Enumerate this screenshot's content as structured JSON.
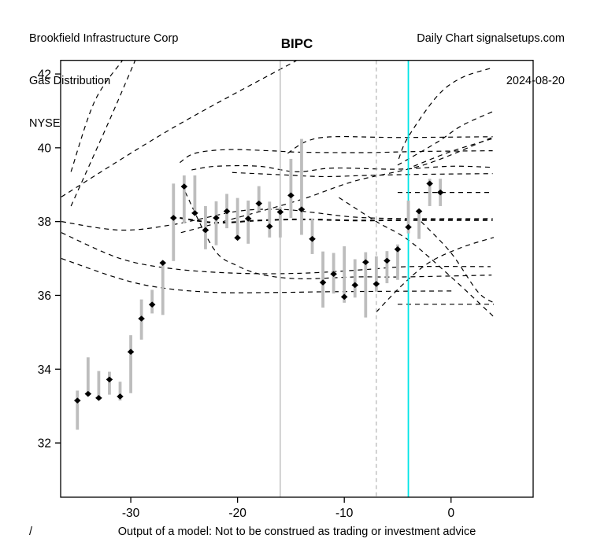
{
  "header": {
    "left_lines": [
      "Brookfield Infrastructure Corp",
      "Gas Distribution",
      "NYSE"
    ],
    "right_lines": [
      "Daily Chart signalsetups.com",
      "2024-08-20"
    ]
  },
  "title": "BIPC",
  "footer": {
    "left_symbol": "/",
    "caption": "Output of a model: Not to be construed as trading or investment advice"
  },
  "colors": {
    "bar": "#bdbdbd",
    "marker": "#000000",
    "model_line": "#000000",
    "vline_gray": "#b3b3b3",
    "vline_cyan": "#00e5e6",
    "axis": "#000000",
    "background": "#ffffff"
  },
  "chart_data": {
    "type": "bar",
    "subtype": "high-low-close price bars with dashed model projection lines",
    "title": "BIPC",
    "xlabel": "",
    "ylabel": "",
    "x_axis": {
      "ticks": [
        -30,
        -20,
        -10,
        0
      ],
      "range": [
        -36.57,
        7.69
      ]
    },
    "y_axis": {
      "ticks": [
        32,
        34,
        36,
        38,
        40,
        42
      ],
      "range": [
        30.53,
        42.37
      ]
    },
    "grid": "off",
    "legend": "none",
    "bars": [
      {
        "x": -35,
        "high": 33.42,
        "low": 32.36,
        "close": 33.15
      },
      {
        "x": -34,
        "high": 34.32,
        "low": 33.27,
        "close": 33.33
      },
      {
        "x": -33,
        "high": 33.95,
        "low": 33.17,
        "close": 33.22
      },
      {
        "x": -32,
        "high": 33.93,
        "low": 33.31,
        "close": 33.72
      },
      {
        "x": -31,
        "high": 33.66,
        "low": 33.15,
        "close": 33.26
      },
      {
        "x": -30,
        "high": 34.92,
        "low": 33.35,
        "close": 34.47
      },
      {
        "x": -29,
        "high": 35.89,
        "low": 34.8,
        "close": 35.37
      },
      {
        "x": -28,
        "high": 36.15,
        "low": 35.51,
        "close": 35.75
      },
      {
        "x": -27,
        "high": 36.93,
        "low": 35.47,
        "close": 36.88
      },
      {
        "x": -26,
        "high": 39.03,
        "low": 36.93,
        "close": 38.1
      },
      {
        "x": -25,
        "high": 39.25,
        "low": 37.95,
        "close": 38.95
      },
      {
        "x": -24,
        "high": 39.25,
        "low": 38.18,
        "close": 38.23
      },
      {
        "x": -23,
        "high": 38.42,
        "low": 37.25,
        "close": 37.77
      },
      {
        "x": -22,
        "high": 38.55,
        "low": 37.36,
        "close": 38.1
      },
      {
        "x": -21,
        "high": 38.75,
        "low": 37.82,
        "close": 38.28
      },
      {
        "x": -20,
        "high": 38.64,
        "low": 37.54,
        "close": 37.56
      },
      {
        "x": -19,
        "high": 38.57,
        "low": 37.4,
        "close": 38.08
      },
      {
        "x": -18,
        "high": 38.96,
        "low": 38.28,
        "close": 38.49
      },
      {
        "x": -17,
        "high": 38.54,
        "low": 37.57,
        "close": 37.87
      },
      {
        "x": -16,
        "high": 38.39,
        "low": 37.57,
        "close": 38.26
      },
      {
        "x": -15,
        "high": 39.7,
        "low": 38.1,
        "close": 38.71
      },
      {
        "x": -14,
        "high": 40.24,
        "low": 37.64,
        "close": 38.33
      },
      {
        "x": -13,
        "high": 38.08,
        "low": 37.12,
        "close": 37.53
      },
      {
        "x": -12,
        "high": 37.19,
        "low": 35.67,
        "close": 36.35
      },
      {
        "x": -11,
        "high": 37.15,
        "low": 36.05,
        "close": 36.58
      },
      {
        "x": -10,
        "high": 37.33,
        "low": 35.8,
        "close": 35.96
      },
      {
        "x": -9,
        "high": 36.98,
        "low": 35.94,
        "close": 36.28
      },
      {
        "x": -8,
        "high": 37.17,
        "low": 35.4,
        "close": 36.9
      },
      {
        "x": -7,
        "high": 37.06,
        "low": 36.1,
        "close": 36.31
      },
      {
        "x": -6,
        "high": 37.2,
        "low": 36.33,
        "close": 36.94
      },
      {
        "x": -5,
        "high": 37.38,
        "low": 36.42,
        "close": 37.25
      },
      {
        "x": -4,
        "high": 38.57,
        "low": 37.68,
        "close": 37.85
      },
      {
        "x": -3,
        "high": 38.32,
        "low": 37.53,
        "close": 38.28
      },
      {
        "x": -2,
        "high": 39.16,
        "low": 38.42,
        "close": 39.03
      },
      {
        "x": -1,
        "high": 39.16,
        "low": 38.42,
        "close": 38.79
      }
    ],
    "vlines": [
      {
        "x": -16,
        "style": "solid",
        "color_key": "vline_gray",
        "width": 1.2
      },
      {
        "x": -7,
        "style": "dashed",
        "color_key": "vline_gray",
        "width": 1.2
      },
      {
        "x": -4,
        "style": "solid",
        "color_key": "vline_cyan",
        "width": 1.8
      }
    ],
    "model_lines": [
      {
        "name": "steep-upper-left-1",
        "width": 1.2,
        "points": [
          [
            -35.6,
            39.35
          ],
          [
            -33.4,
            41.25
          ],
          [
            -30.8,
            42.36
          ]
        ]
      },
      {
        "name": "steep-upper-left-2",
        "width": 1.2,
        "points": [
          [
            -35.6,
            38.42
          ],
          [
            -31.9,
            40.81
          ],
          [
            -29.6,
            42.36
          ]
        ]
      },
      {
        "name": "long-rising-diagonal",
        "width": 1.2,
        "points": [
          [
            -36.5,
            38.67
          ],
          [
            -26,
            40.55
          ],
          [
            -14.5,
            42.36
          ]
        ]
      },
      {
        "name": "band-38-upper",
        "width": 1.2,
        "points": [
          [
            -36.5,
            38.0
          ],
          [
            -31,
            37.77
          ],
          [
            -26,
            37.92
          ],
          [
            -20,
            38.28
          ],
          [
            -16,
            38.33
          ],
          [
            -13,
            38.25
          ],
          [
            -9,
            38.12
          ],
          [
            -4,
            38.08
          ],
          [
            3.9,
            38.08
          ]
        ]
      },
      {
        "name": "band-38-lower-bold",
        "width": 2.0,
        "points": [
          [
            -25.4,
            38.1
          ],
          [
            -22,
            37.97
          ],
          [
            -18,
            38.03
          ],
          [
            -14,
            38.06
          ],
          [
            -9,
            38.03
          ],
          [
            -4,
            38.04
          ],
          [
            3.9,
            38.04
          ]
        ]
      },
      {
        "name": "band-36-8",
        "width": 1.2,
        "points": [
          [
            -36.5,
            37.7
          ],
          [
            -31,
            37.0
          ],
          [
            -26,
            36.72
          ],
          [
            -20,
            36.6
          ],
          [
            -14,
            36.6
          ],
          [
            -8,
            36.7
          ],
          [
            -3.9,
            36.78
          ],
          [
            3.7,
            36.78
          ]
        ]
      },
      {
        "name": "band-36-1",
        "width": 1.2,
        "points": [
          [
            -36.5,
            37.0
          ],
          [
            -31,
            36.45
          ],
          [
            -27,
            36.2
          ],
          [
            -22,
            36.08
          ],
          [
            -16,
            36.08
          ],
          [
            -11,
            36.1
          ],
          [
            0.3,
            36.12
          ]
        ]
      },
      {
        "name": "lens-left-descender",
        "width": 1.2,
        "points": [
          [
            -24.9,
            38.8
          ],
          [
            -22.2,
            37.25
          ],
          [
            -20,
            36.8
          ],
          [
            -17.5,
            36.55
          ],
          [
            -14,
            36.45
          ],
          [
            -9,
            36.5
          ],
          [
            -4.5,
            36.5
          ],
          [
            3.8,
            36.55
          ]
        ]
      },
      {
        "name": "falling-diagonal-right",
        "width": 1.2,
        "points": [
          [
            -10.5,
            38.65
          ],
          [
            -7,
            38.0
          ],
          [
            -4,
            37.5
          ],
          [
            0,
            36.5
          ],
          [
            4,
            35.42
          ]
        ]
      },
      {
        "name": "falling-diagonal-right-2",
        "width": 1.2,
        "points": [
          [
            -2.8,
            38.0
          ],
          [
            0,
            37.15
          ],
          [
            2.5,
            36.1
          ],
          [
            4,
            35.8
          ]
        ]
      },
      {
        "name": "flat-35-76",
        "width": 1.2,
        "points": [
          [
            -5,
            35.76
          ],
          [
            4,
            35.76
          ]
        ]
      },
      {
        "name": "dip-riser",
        "width": 1.2,
        "points": [
          [
            -7,
            35.55
          ],
          [
            -4.5,
            36.3
          ],
          [
            -2,
            36.9
          ],
          [
            1,
            37.3
          ],
          [
            4,
            37.57
          ]
        ]
      },
      {
        "name": "long-shallow-riser",
        "width": 1.2,
        "points": [
          [
            -25.3,
            37.7
          ],
          [
            -20.1,
            38.1
          ],
          [
            -14,
            38.6
          ],
          [
            -9,
            39.1
          ],
          [
            -2.4,
            39.55
          ],
          [
            4,
            40.3
          ]
        ]
      },
      {
        "name": "level-40-3",
        "width": 1.2,
        "points": [
          [
            -15.3,
            39.85
          ],
          [
            -13.5,
            40.18
          ],
          [
            -11,
            40.3
          ],
          [
            -5,
            40.28
          ],
          [
            3.9,
            40.3
          ]
        ]
      },
      {
        "name": "level-39-9",
        "width": 1.2,
        "points": [
          [
            -25.4,
            39.6
          ],
          [
            -24,
            39.85
          ],
          [
            -21,
            39.95
          ],
          [
            -17,
            39.92
          ],
          [
            -14,
            39.88
          ],
          [
            -8,
            39.87
          ],
          [
            -3,
            39.9
          ],
          [
            3.9,
            39.92
          ]
        ]
      },
      {
        "name": "level-39-5",
        "width": 1.2,
        "points": [
          [
            -24.3,
            39.4
          ],
          [
            -22,
            39.5
          ],
          [
            -18,
            39.5
          ],
          [
            -14.5,
            39.35
          ],
          [
            -11,
            39.45
          ],
          [
            -5,
            39.42
          ],
          [
            0,
            39.5
          ],
          [
            3.9,
            39.47
          ]
        ]
      },
      {
        "name": "level-39-3",
        "width": 1.2,
        "points": [
          [
            -20.5,
            39.33
          ],
          [
            -16,
            39.27
          ],
          [
            -12,
            39.22
          ],
          [
            -8,
            39.25
          ],
          [
            -3,
            39.28
          ],
          [
            3.9,
            39.3
          ]
        ]
      },
      {
        "name": "level-38-8-short",
        "width": 1.2,
        "points": [
          [
            -5,
            38.79
          ],
          [
            3.9,
            38.79
          ]
        ]
      },
      {
        "name": "forecast-fan-up-1",
        "width": 1.2,
        "points": [
          [
            -4.9,
            39.7
          ],
          [
            -4,
            40.3
          ],
          [
            -1.3,
            41.4
          ],
          [
            1,
            41.9
          ],
          [
            3.9,
            42.17
          ]
        ]
      },
      {
        "name": "forecast-fan-up-2",
        "width": 1.2,
        "points": [
          [
            -5,
            39.53
          ],
          [
            -1.3,
            40.15
          ],
          [
            1,
            40.6
          ],
          [
            3.9,
            40.98
          ]
        ]
      },
      {
        "name": "forecast-fan-up-3",
        "width": 1.2,
        "points": [
          [
            -3.5,
            39.5
          ],
          [
            0,
            39.9
          ],
          [
            3.9,
            40.25
          ]
        ]
      }
    ]
  }
}
